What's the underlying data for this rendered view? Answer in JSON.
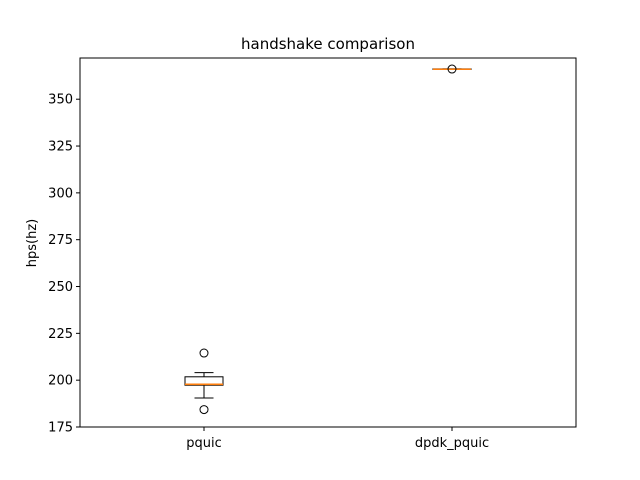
{
  "chart_data": {
    "type": "box",
    "title": "handshake comparison",
    "xlabel": "",
    "ylabel": "hps(hz)",
    "ylim": [
      175,
      372
    ],
    "yticks": [
      175,
      200,
      225,
      250,
      275,
      300,
      325,
      350
    ],
    "grid": false,
    "categories": [
      "pquic",
      "dpdk_pquic"
    ],
    "boxes": [
      {
        "category": "pquic",
        "whisker_low": 190.5,
        "q1": 197.3,
        "median": 197.8,
        "q3": 201.8,
        "whisker_high": 204.0,
        "fliers": [
          214.5,
          184.3
        ]
      },
      {
        "category": "dpdk_pquic",
        "whisker_low": 366.0,
        "q1": 366.0,
        "median": 366.0,
        "q3": 366.2,
        "whisker_high": 366.2,
        "fliers": [
          366.1
        ]
      }
    ],
    "colors": {
      "box": "#000000",
      "median": "#ff7f0e",
      "flier": "#000000"
    }
  }
}
